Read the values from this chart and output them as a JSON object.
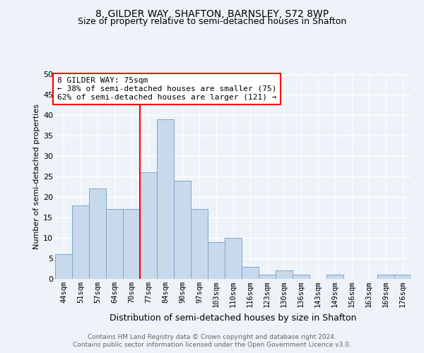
{
  "title": "8, GILDER WAY, SHAFTON, BARNSLEY, S72 8WP",
  "subtitle": "Size of property relative to semi-detached houses in Shafton",
  "xlabel": "Distribution of semi-detached houses by size in Shafton",
  "ylabel": "Number of semi-detached properties",
  "footer_line1": "Contains HM Land Registry data © Crown copyright and database right 2024.",
  "footer_line2": "Contains public sector information licensed under the Open Government Licence v3.0.",
  "categories": [
    "44sqm",
    "51sqm",
    "57sqm",
    "64sqm",
    "70sqm",
    "77sqm",
    "84sqm",
    "90sqm",
    "97sqm",
    "103sqm",
    "110sqm",
    "116sqm",
    "123sqm",
    "130sqm",
    "136sqm",
    "143sqm",
    "149sqm",
    "156sqm",
    "163sqm",
    "169sqm",
    "176sqm"
  ],
  "values": [
    6,
    18,
    22,
    17,
    17,
    26,
    39,
    24,
    17,
    9,
    10,
    3,
    1,
    2,
    1,
    0,
    1,
    0,
    0,
    1,
    1
  ],
  "bar_color": "#c9d9ec",
  "bar_edge_color": "#7ba7cc",
  "vline_index": 5,
  "vline_color": "red",
  "ann_line1": "8 GILDER WAY: 75sqm",
  "ann_line2": "← 38% of semi-detached houses are smaller (75)",
  "ann_line3": "62% of semi-detached houses are larger (121) →",
  "annotation_box_color": "white",
  "annotation_box_edge_color": "red",
  "ylim": [
    0,
    50
  ],
  "bg_color": "#eef2f9",
  "plot_bg_color": "#eef2f9",
  "title_fontsize": 10,
  "subtitle_fontsize": 9
}
